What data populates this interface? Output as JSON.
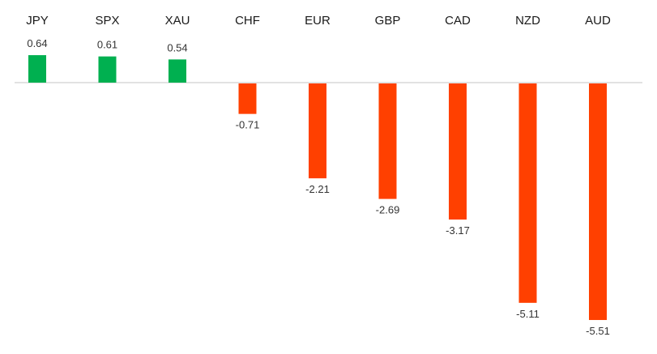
{
  "chart_data": {
    "type": "bar",
    "categories": [
      "JPY",
      "SPX",
      "XAU",
      "CHF",
      "EUR",
      "GBP",
      "CAD",
      "NZD",
      "AUD"
    ],
    "values": [
      0.64,
      0.61,
      0.54,
      -0.71,
      -2.21,
      -2.69,
      -3.17,
      -5.11,
      -5.51
    ],
    "value_labels": [
      "0.64",
      "0.61",
      "0.54",
      "-0.71",
      "-2.21",
      "-2.69",
      "-3.17",
      "-5.11",
      "-5.51"
    ],
    "title": "",
    "xlabel": "",
    "ylabel": "",
    "ylim": [
      -5.51,
      0.64
    ],
    "grid": false,
    "legend": "none",
    "colors": {
      "positive": "#00b050",
      "negative": "#ff4000",
      "axis": "#d9d9d9"
    }
  }
}
